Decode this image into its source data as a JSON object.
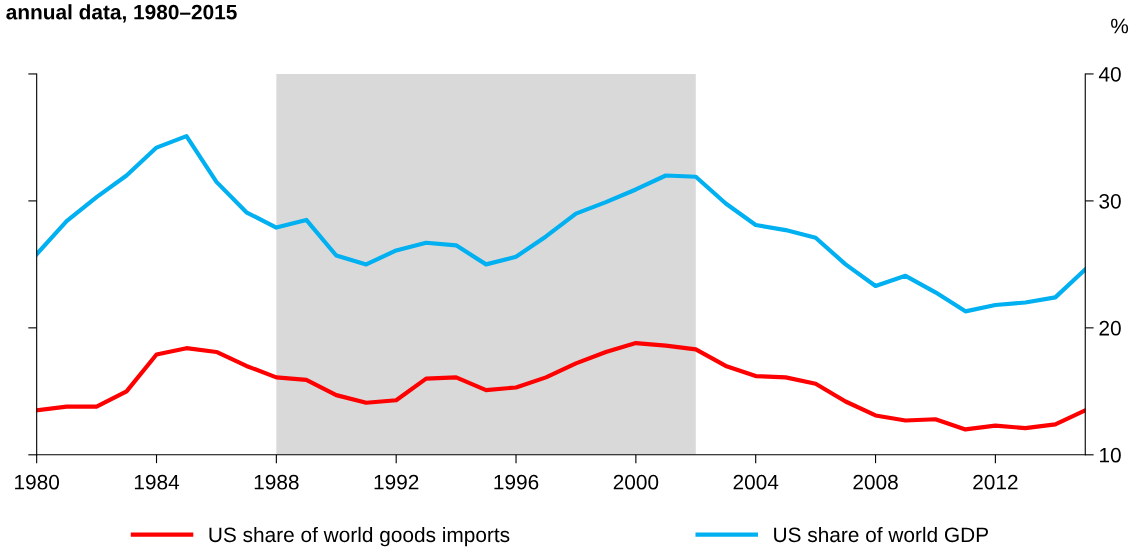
{
  "chart_data": {
    "type": "line",
    "title": "annual data, 1980–2015",
    "ylabel": "%",
    "x": [
      1980,
      1981,
      1982,
      1983,
      1984,
      1985,
      1986,
      1987,
      1988,
      1989,
      1990,
      1991,
      1992,
      1993,
      1994,
      1995,
      1996,
      1997,
      1998,
      1999,
      2000,
      2001,
      2002,
      2003,
      2004,
      2005,
      2006,
      2007,
      2008,
      2009,
      2010,
      2011,
      2012,
      2013,
      2014,
      2015
    ],
    "series": [
      {
        "name": "US share of world goods imports",
        "color": "#ff0000",
        "values": [
          13.5,
          13.8,
          13.8,
          15.0,
          17.9,
          18.4,
          18.1,
          17.0,
          16.1,
          15.9,
          14.7,
          14.1,
          14.3,
          16.0,
          16.1,
          15.1,
          15.3,
          16.1,
          17.2,
          18.1,
          18.8,
          18.6,
          18.3,
          17.0,
          16.2,
          16.1,
          15.6,
          14.2,
          13.1,
          12.7,
          12.8,
          12.0,
          12.3,
          12.1,
          12.4,
          13.5
        ]
      },
      {
        "name": "US share of world GDP",
        "color": "#00b0f0",
        "values": [
          25.8,
          28.4,
          30.3,
          32.0,
          34.2,
          35.1,
          31.5,
          29.1,
          27.9,
          28.5,
          25.7,
          25.0,
          26.1,
          26.7,
          26.5,
          25.0,
          25.6,
          27.2,
          29.0,
          29.9,
          30.9,
          32.0,
          31.9,
          29.8,
          28.1,
          27.7,
          27.1,
          25.0,
          23.3,
          24.1,
          22.8,
          21.3,
          21.8,
          22.0,
          22.4,
          24.6
        ]
      }
    ],
    "xlim": [
      1980,
      2015
    ],
    "xticks": [
      1980,
      1984,
      1988,
      1992,
      1996,
      2000,
      2004,
      2008,
      2012
    ],
    "ylim": [
      10,
      40
    ],
    "yticks": [
      10,
      20,
      30,
      40
    ],
    "bands": [
      {
        "axis": "x",
        "from": 1988,
        "to": 2002,
        "color": "#d9d9d9"
      }
    ],
    "legend": "bottom",
    "grid": false,
    "marker": "none",
    "line_style": "solid"
  }
}
